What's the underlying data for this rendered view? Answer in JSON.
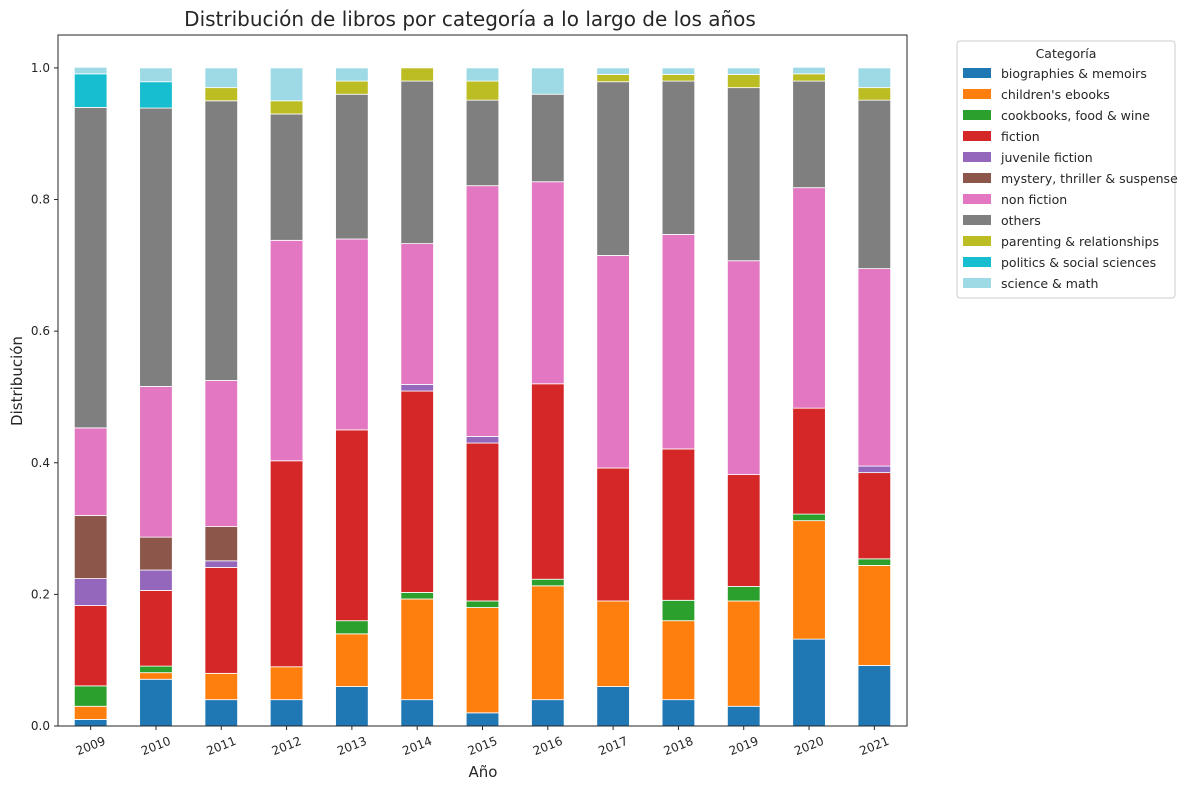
{
  "chart_data": {
    "type": "bar",
    "stacked": true,
    "title": "Distribución de libros por categoría a lo largo de los años",
    "xlabel": "Año",
    "ylabel": "Distribución",
    "ylim": [
      0,
      1.05
    ],
    "yticks": [
      "0.0",
      "0.2",
      "0.4",
      "0.6",
      "0.8",
      "1.0"
    ],
    "categories": [
      "2009",
      "2010",
      "2011",
      "2012",
      "2013",
      "2014",
      "2015",
      "2016",
      "2017",
      "2018",
      "2019",
      "2020",
      "2021"
    ],
    "legend_title": "Categoría",
    "legend_position": "outside-upper-right",
    "grid": false,
    "series": [
      {
        "name": "biographies & memoirs",
        "color": "#1f77b4",
        "values": [
          0.01,
          0.071,
          0.04,
          0.04,
          0.06,
          0.04,
          0.02,
          0.04,
          0.06,
          0.04,
          0.03,
          0.132,
          0.092
        ]
      },
      {
        "name": "children's ebooks",
        "color": "#ff7f0e",
        "values": [
          0.02,
          0.01,
          0.04,
          0.05,
          0.08,
          0.153,
          0.16,
          0.173,
          0.13,
          0.12,
          0.16,
          0.18,
          0.152
        ]
      },
      {
        "name": "cookbooks, food & wine",
        "color": "#2ca02c",
        "values": [
          0.031,
          0.01,
          0.0,
          0.0,
          0.02,
          0.01,
          0.01,
          0.01,
          0.0,
          0.031,
          0.022,
          0.01,
          0.01
        ]
      },
      {
        "name": "fiction",
        "color": "#d62728",
        "values": [
          0.122,
          0.115,
          0.161,
          0.313,
          0.29,
          0.306,
          0.24,
          0.297,
          0.202,
          0.23,
          0.17,
          0.161,
          0.131
        ]
      },
      {
        "name": "juvenile fiction",
        "color": "#9467bd",
        "values": [
          0.041,
          0.031,
          0.01,
          0.0,
          0.0,
          0.01,
          0.01,
          0.0,
          0.0,
          0.0,
          0.0,
          0.0,
          0.01
        ]
      },
      {
        "name": "mystery, thriller & suspense",
        "color": "#8c564b",
        "values": [
          0.096,
          0.05,
          0.052,
          0.0,
          0.0,
          0.0,
          0.0,
          0.0,
          0.0,
          0.0,
          0.0,
          0.0,
          0.0
        ]
      },
      {
        "name": "non fiction",
        "color": "#e377c2",
        "values": [
          0.133,
          0.229,
          0.222,
          0.335,
          0.29,
          0.214,
          0.381,
          0.307,
          0.323,
          0.326,
          0.325,
          0.335,
          0.3
        ]
      },
      {
        "name": "others",
        "color": "#7f7f7f",
        "values": [
          0.487,
          0.423,
          0.425,
          0.192,
          0.22,
          0.247,
          0.13,
          0.133,
          0.264,
          0.233,
          0.263,
          0.162,
          0.256
        ]
      },
      {
        "name": "parenting & relationships",
        "color": "#bcbd22",
        "values": [
          0.0,
          0.0,
          0.02,
          0.02,
          0.02,
          0.02,
          0.029,
          0.0,
          0.011,
          0.01,
          0.02,
          0.011,
          0.019
        ]
      },
      {
        "name": "politics & social sciences",
        "color": "#17becf",
        "values": [
          0.051,
          0.04,
          0.0,
          0.0,
          0.0,
          0.0,
          0.0,
          0.0,
          0.0,
          0.0,
          0.0,
          0.0,
          0.0
        ]
      },
      {
        "name": "science & math",
        "color": "#9edae5",
        "values": [
          0.01,
          0.021,
          0.03,
          0.05,
          0.02,
          0.0,
          0.02,
          0.04,
          0.01,
          0.01,
          0.01,
          0.01,
          0.03
        ]
      }
    ]
  }
}
